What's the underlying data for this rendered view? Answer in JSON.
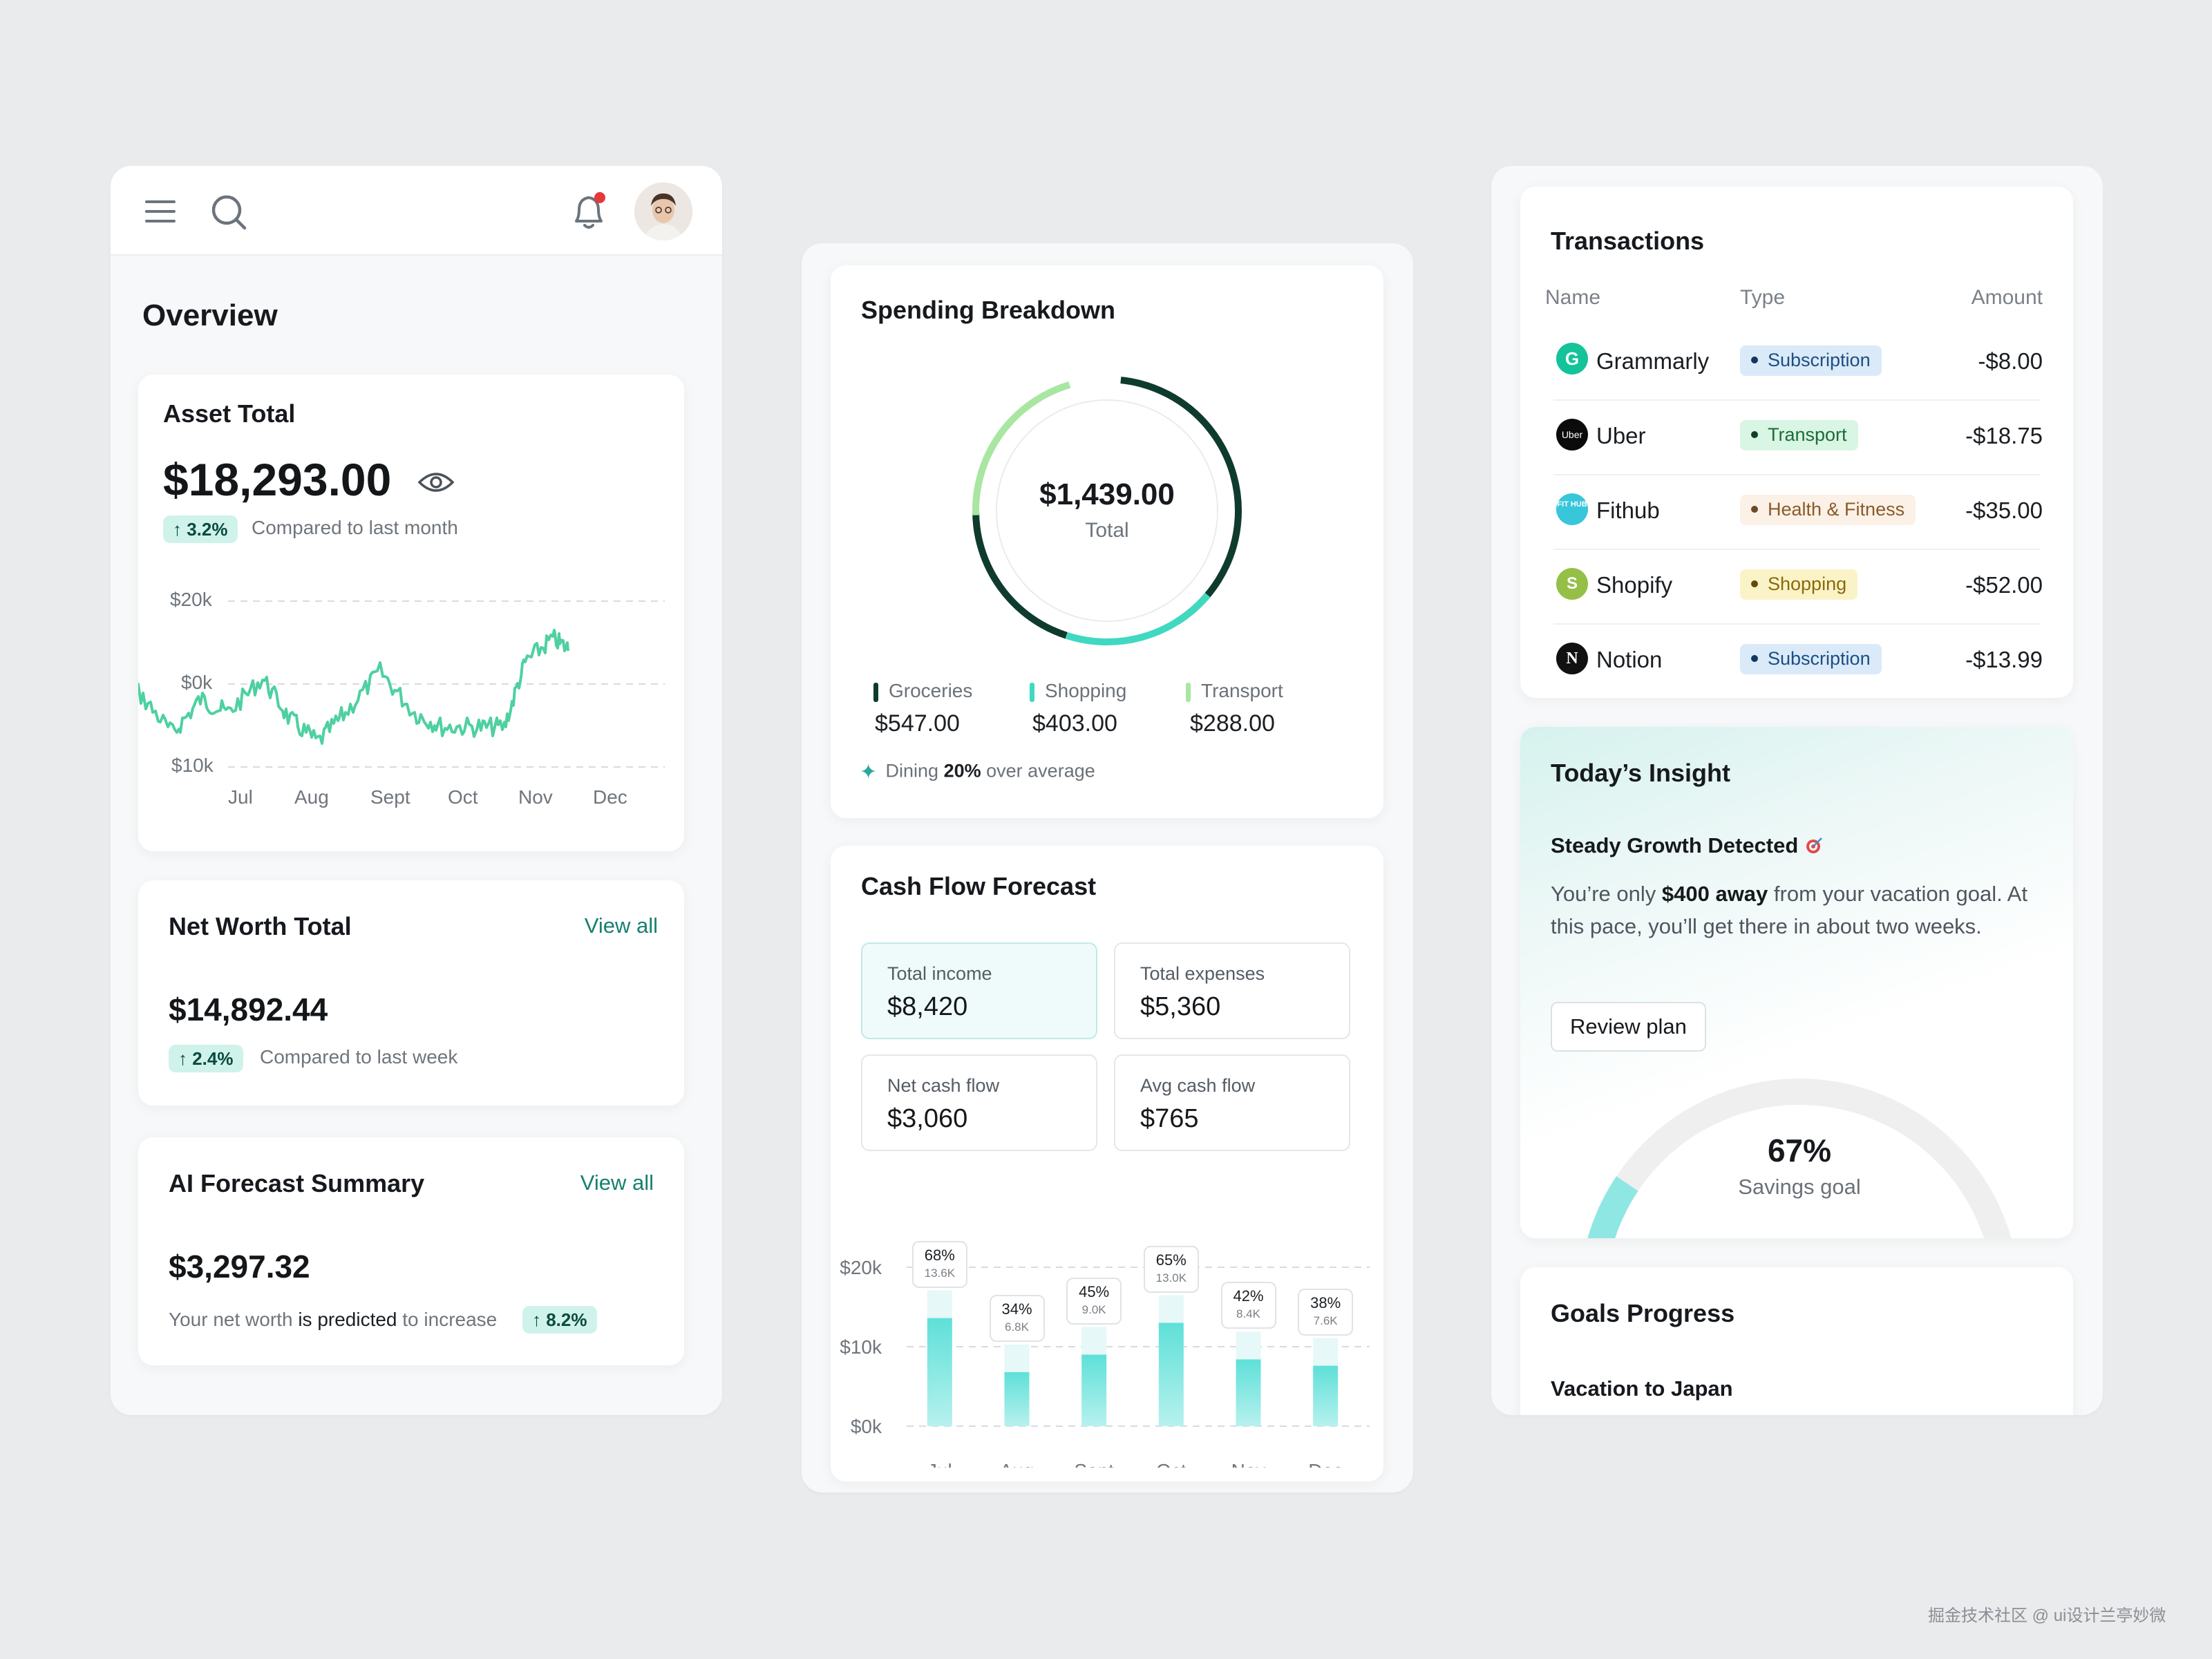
{
  "overview": {
    "title": "Overview",
    "asset": {
      "title": "Asset Total",
      "amount": "$18,293.00",
      "change": "↑ 3.2%",
      "caption": "Compared to last month",
      "y_labels": [
        "$20k",
        "$0k",
        "$10k"
      ],
      "x_labels": [
        "Jul",
        "Aug",
        "Sept",
        "Oct",
        "Nov",
        "Dec"
      ]
    },
    "net_worth": {
      "title": "Net Worth Total",
      "link": "View all",
      "amount": "$14,892.44",
      "change": "↑ 2.4%",
      "caption": "Compared to last week"
    },
    "ai_forecast": {
      "title": "AI Forecast Summary",
      "link": "View all",
      "amount": "$3,297.32",
      "caption_prefix": "Your net worth",
      "caption_bold": "is predicted",
      "caption_suffix": "to increase",
      "change": "↑ 8.2%"
    }
  },
  "spending": {
    "title": "Spending Breakdown",
    "total_amount": "$1,439.00",
    "total_label": "Total",
    "categories": [
      {
        "name": "Groceries",
        "amount": "$547.00",
        "color": "#0f3b2f"
      },
      {
        "name": "Shopping",
        "amount": "$403.00",
        "color": "#3fd9c1"
      },
      {
        "name": "Transport",
        "amount": "$288.00",
        "color": "#a8e6a1"
      }
    ],
    "insight_prefix": "Dining",
    "insight_bold": "20%",
    "insight_suffix": "over average"
  },
  "cashflow": {
    "title": "Cash Flow Forecast",
    "stats": [
      {
        "label": "Total income",
        "value": "$8,420"
      },
      {
        "label": "Total expenses",
        "value": "$5,360"
      },
      {
        "label": "Net cash flow",
        "value": "$3,060"
      },
      {
        "label": "Avg cash flow",
        "value": "$765"
      }
    ],
    "chart_data": {
      "type": "bar",
      "categories": [
        "Jul",
        "Aug",
        "Sept",
        "Oct",
        "Nov",
        "Dec"
      ],
      "values": [
        13.6,
        6.8,
        9.0,
        13.0,
        8.4,
        7.6
      ],
      "percent_labels": [
        "68%",
        "34%",
        "45%",
        "65%",
        "42%",
        "38%"
      ],
      "value_labels": [
        "13.6K",
        "6.8K",
        "9.0K",
        "13.0K",
        "8.4K",
        "7.6K"
      ],
      "y_ticks": [
        "$20k",
        "$10k",
        "$0k"
      ],
      "ylim": [
        0,
        20
      ],
      "grid": true
    }
  },
  "transactions": {
    "title": "Transactions",
    "headers": [
      "Name",
      "Type",
      "Amount"
    ],
    "rows": [
      {
        "name": "Grammarly",
        "type": "Subscription",
        "amount": "-$8.00"
      },
      {
        "name": "Uber",
        "type": "Transport",
        "amount": "-$18.75"
      },
      {
        "name": "Fithub",
        "type": "Health & Fitness",
        "amount": "-$35.00"
      },
      {
        "name": "Shopify",
        "type": "Shopping",
        "amount": "-$52.00"
      },
      {
        "name": "Notion",
        "type": "Subscription",
        "amount": "-$13.99"
      }
    ],
    "logo_text": {
      "uber": "Uber",
      "fithub": "FIT HUB",
      "shopify": "S",
      "notion": "N",
      "grammarly": "G"
    }
  },
  "insight": {
    "title": "Today’s Insight",
    "headline": "Steady Growth Detected",
    "body_prefix": "You’re only",
    "body_bold": "$400 away",
    "body_suffix": "from your vacation goal. At this pace, you’ll get there in about two weeks.",
    "button": "Review plan",
    "goal_percent": "67%",
    "goal_label": "Savings goal",
    "goal_value": 0.67
  },
  "goals": {
    "title": "Goals Progress",
    "first_goal": "Vacation to Japan"
  },
  "watermark": "掘金技术社区 @ ui设计兰亭妙微"
}
